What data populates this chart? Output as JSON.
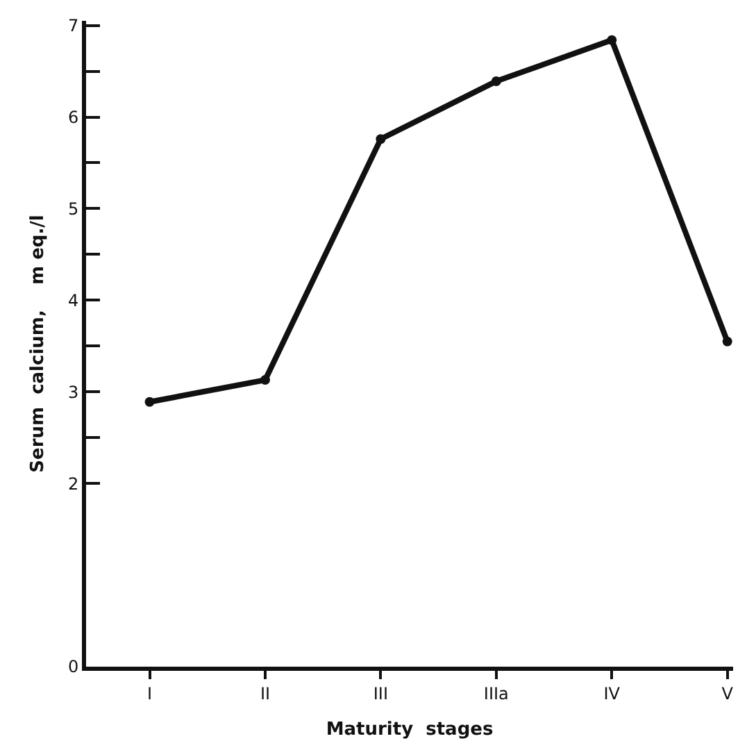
{
  "chart_data": {
    "type": "line",
    "xlabel": "Maturity  stages",
    "ylabel": "Serum  calcium,    m eq./l",
    "categories": [
      "I",
      "II",
      "III",
      "IIIa",
      "IV",
      "V"
    ],
    "values": [
      2.89,
      3.13,
      5.76,
      6.39,
      6.84,
      3.55
    ],
    "color": "#111111",
    "marker": "circle",
    "line_style": "solid",
    "legend": false,
    "ylim": [
      0,
      7.05
    ],
    "yticks": [
      0,
      2,
      {
        "value": 2.5,
        "label": null
      },
      3,
      {
        "value": 3.5,
        "label": null
      },
      4,
      {
        "value": 4.5,
        "label": null
      },
      5,
      {
        "value": 5.5,
        "label": null
      },
      6,
      {
        "value": 6.5,
        "label": null
      },
      7
    ]
  }
}
